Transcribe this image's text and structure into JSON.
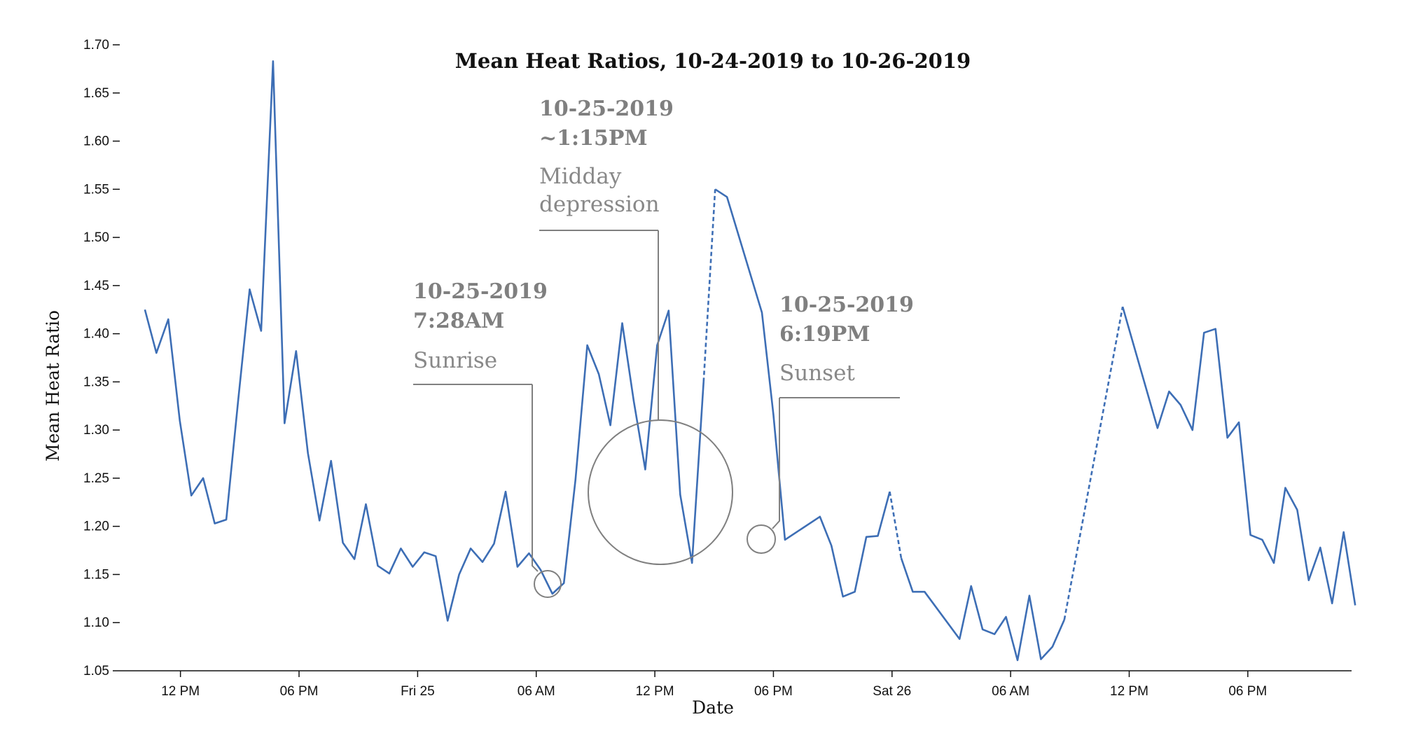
{
  "chart_data": {
    "type": "line",
    "title": "Mean Heat Ratios, 10-24-2019 to 10-26-2019",
    "xlabel": "Date",
    "ylabel": "Mean Heat Ratio",
    "ylim": [
      1.05,
      1.7
    ],
    "yticks": [
      "1.05",
      "1.10",
      "1.15",
      "1.20",
      "1.25",
      "1.30",
      "1.35",
      "1.40",
      "1.45",
      "1.50",
      "1.55",
      "1.60",
      "1.65",
      "1.70"
    ],
    "x_domain": [
      "2019-10-24T09:00",
      "2019-10-26T23:15"
    ],
    "xticks": [
      {
        "t": "2019-10-24T12:00",
        "label": "12 PM"
      },
      {
        "t": "2019-10-24T18:00",
        "label": "06 PM"
      },
      {
        "t": "2019-10-25T00:00",
        "label": "Fri 25"
      },
      {
        "t": "2019-10-25T06:00",
        "label": "06 AM"
      },
      {
        "t": "2019-10-25T12:00",
        "label": "12 PM"
      },
      {
        "t": "2019-10-25T18:00",
        "label": "06 PM"
      },
      {
        "t": "2019-10-26T00:00",
        "label": "Sat 26"
      },
      {
        "t": "2019-10-26T06:00",
        "label": "06 AM"
      },
      {
        "t": "2019-10-26T12:00",
        "label": "12 PM"
      },
      {
        "t": "2019-10-26T18:00",
        "label": "06 PM"
      }
    ],
    "grid": false,
    "color": "#3d6eb5",
    "annotation_color": "#808080",
    "series": [
      {
        "segments": [
          {
            "style": "solid",
            "points": [
              [
                "2019-10-24T10:12",
                1.425
              ],
              [
                "2019-10-24T10:47",
                1.38
              ],
              [
                "2019-10-24T11:23",
                1.415
              ],
              [
                "2019-10-24T11:58",
                1.31
              ],
              [
                "2019-10-24T12:33",
                1.232
              ],
              [
                "2019-10-24T13:09",
                1.25
              ],
              [
                "2019-10-24T13:44",
                1.203
              ],
              [
                "2019-10-24T14:19",
                1.207
              ],
              [
                "2019-10-24T14:55",
                1.33
              ],
              [
                "2019-10-24T15:30",
                1.446
              ],
              [
                "2019-10-24T16:05",
                1.403
              ],
              [
                "2019-10-24T16:41",
                1.683
              ],
              [
                "2019-10-24T17:16",
                1.307
              ],
              [
                "2019-10-24T17:51",
                1.382
              ],
              [
                "2019-10-24T18:27",
                1.276
              ],
              [
                "2019-10-24T19:02",
                1.206
              ],
              [
                "2019-10-24T19:37",
                1.268
              ],
              [
                "2019-10-24T20:13",
                1.183
              ],
              [
                "2019-10-24T20:48",
                1.166
              ],
              [
                "2019-10-24T21:23",
                1.223
              ],
              [
                "2019-10-24T21:59",
                1.159
              ],
              [
                "2019-10-24T22:34",
                1.151
              ],
              [
                "2019-10-24T23:09",
                1.177
              ],
              [
                "2019-10-24T23:45",
                1.158
              ],
              [
                "2019-10-25T00:20",
                1.173
              ],
              [
                "2019-10-25T00:55",
                1.169
              ],
              [
                "2019-10-25T01:31",
                1.102
              ],
              [
                "2019-10-25T02:06",
                1.15
              ],
              [
                "2019-10-25T02:41",
                1.177
              ],
              [
                "2019-10-25T03:17",
                1.163
              ],
              [
                "2019-10-25T03:52",
                1.182
              ],
              [
                "2019-10-25T04:27",
                1.236
              ],
              [
                "2019-10-25T05:03",
                1.158
              ],
              [
                "2019-10-25T05:38",
                1.172
              ],
              [
                "2019-10-25T06:13",
                1.155
              ],
              [
                "2019-10-25T06:49",
                1.13
              ],
              [
                "2019-10-25T07:24",
                1.141
              ],
              [
                "2019-10-25T07:59",
                1.248
              ],
              [
                "2019-10-25T08:35",
                1.388
              ],
              [
                "2019-10-25T09:10",
                1.358
              ],
              [
                "2019-10-25T09:45",
                1.305
              ],
              [
                "2019-10-25T10:21",
                1.411
              ],
              [
                "2019-10-25T10:56",
                1.33
              ],
              [
                "2019-10-25T11:31",
                1.259
              ],
              [
                "2019-10-25T12:07",
                1.388
              ],
              [
                "2019-10-25T12:42",
                1.424
              ],
              [
                "2019-10-25T13:17",
                1.233
              ],
              [
                "2019-10-25T13:53",
                1.162
              ],
              [
                "2019-10-25T14:28",
                1.35
              ]
            ]
          },
          {
            "style": "dashed",
            "points": [
              [
                "2019-10-25T14:28",
                1.35
              ],
              [
                "2019-10-25T15:03",
                1.55
              ]
            ]
          },
          {
            "style": "solid",
            "points": [
              [
                "2019-10-25T15:03",
                1.55
              ],
              [
                "2019-10-25T15:39",
                1.542
              ],
              [
                "2019-10-25T17:25",
                1.422
              ],
              [
                "2019-10-25T18:00",
                1.316
              ],
              [
                "2019-10-25T18:35",
                1.186
              ],
              [
                "2019-10-25T20:21",
                1.21
              ],
              [
                "2019-10-25T20:56",
                1.18
              ],
              [
                "2019-10-25T21:31",
                1.127
              ],
              [
                "2019-10-25T22:07",
                1.132
              ],
              [
                "2019-10-25T22:42",
                1.189
              ],
              [
                "2019-10-25T23:17",
                1.19
              ],
              [
                "2019-10-25T23:53",
                1.236
              ]
            ]
          },
          {
            "style": "dashed",
            "points": [
              [
                "2019-10-25T23:53",
                1.236
              ],
              [
                "2019-10-26T00:28",
                1.167
              ]
            ]
          },
          {
            "style": "solid",
            "points": [
              [
                "2019-10-26T00:28",
                1.167
              ],
              [
                "2019-10-26T01:03",
                1.132
              ],
              [
                "2019-10-26T01:39",
                1.132
              ],
              [
                "2019-10-26T03:25",
                1.083
              ],
              [
                "2019-10-26T04:00",
                1.138
              ],
              [
                "2019-10-26T04:35",
                1.093
              ],
              [
                "2019-10-26T05:11",
                1.088
              ],
              [
                "2019-10-26T05:46",
                1.106
              ],
              [
                "2019-10-26T06:21",
                1.061
              ],
              [
                "2019-10-26T06:57",
                1.128
              ],
              [
                "2019-10-26T07:32",
                1.062
              ],
              [
                "2019-10-26T08:07",
                1.075
              ],
              [
                "2019-10-26T08:43",
                1.103
              ]
            ]
          },
          {
            "style": "dashed",
            "points": [
              [
                "2019-10-26T08:43",
                1.103
              ],
              [
                "2019-10-26T11:40",
                1.428
              ]
            ]
          },
          {
            "style": "solid",
            "points": [
              [
                "2019-10-26T11:40",
                1.428
              ],
              [
                "2019-10-26T13:26",
                1.302
              ],
              [
                "2019-10-26T14:01",
                1.34
              ],
              [
                "2019-10-26T14:36",
                1.326
              ],
              [
                "2019-10-26T15:12",
                1.3
              ],
              [
                "2019-10-26T15:47",
                1.401
              ],
              [
                "2019-10-26T16:22",
                1.405
              ],
              [
                "2019-10-26T16:58",
                1.292
              ],
              [
                "2019-10-26T17:33",
                1.308
              ],
              [
                "2019-10-26T18:08",
                1.191
              ],
              [
                "2019-10-26T18:44",
                1.186
              ],
              [
                "2019-10-26T19:19",
                1.162
              ],
              [
                "2019-10-26T19:54",
                1.24
              ],
              [
                "2019-10-26T20:30",
                1.217
              ],
              [
                "2019-10-26T21:05",
                1.144
              ],
              [
                "2019-10-26T21:40",
                1.178
              ],
              [
                "2019-10-26T22:16",
                1.12
              ],
              [
                "2019-10-26T22:51",
                1.194
              ],
              [
                "2019-10-26T23:26",
                1.118
              ]
            ]
          }
        ]
      }
    ],
    "annotations": [
      {
        "title": [
          "10-25-2019",
          "7:28AM"
        ],
        "label": [
          "Sunrise"
        ],
        "target": [
          "2019-10-25T07:28",
          1.14
        ],
        "marker": "small-circle"
      },
      {
        "title": [
          "10-25-2019",
          "~1:15PM"
        ],
        "label": [
          "Midday",
          "depression"
        ],
        "target": [
          "2019-10-25T13:15",
          1.233
        ],
        "marker": "large-circle"
      },
      {
        "title": [
          "10-25-2019",
          "6:19PM"
        ],
        "label": [
          "Sunset"
        ],
        "target": [
          "2019-10-25T18:19",
          1.186
        ],
        "marker": "small-circle"
      }
    ]
  }
}
